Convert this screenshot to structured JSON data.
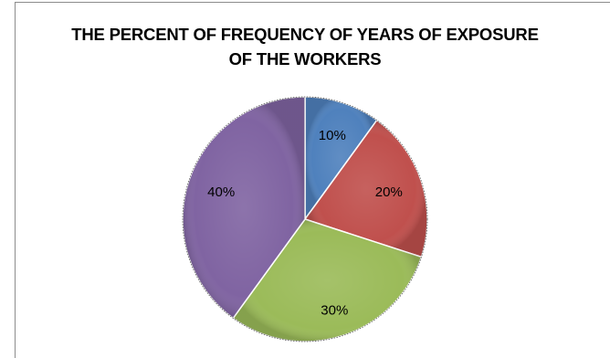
{
  "chart_data": {
    "type": "pie",
    "title_lines": [
      "THE PERCENT OF FREQUENCY OF YEARS OF EXPOSURE",
      "OF THE WORKERS"
    ],
    "title": "THE PERCENT OF FREQUENCY OF YEARS OF EXPOSURE OF THE WORKERS",
    "values": [
      10,
      20,
      30,
      40
    ],
    "labels": [
      "10%",
      "20%",
      "30%",
      "40%"
    ],
    "colors": [
      "#4f81bd",
      "#c0504d",
      "#9bbb59",
      "#8064a2"
    ],
    "legend": "none",
    "start": "12 o'clock, clockwise"
  }
}
